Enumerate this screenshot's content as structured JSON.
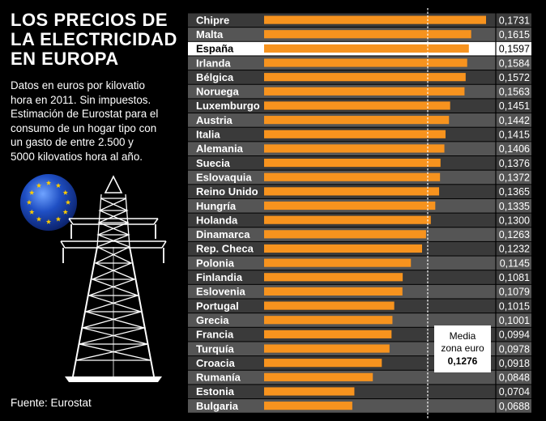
{
  "title": "LOS PRECIOS DE\nLA ELECTRICIDAD\nEN EUROPA",
  "description": "Datos en euros por  kilovatio\nhora en 2011. Sin impuestos.\nEstimación de Eurostat para el\nconsumo de un hogar tipo con\nun gasto de entre 2.500 y\n5000 kilovatios hora al año.",
  "source": "Fuente: Eurostat",
  "icons": {
    "flag": "eu-flag-icon",
    "tower": "power-pylon-icon"
  },
  "colors": {
    "background": "#000000",
    "bar": "#f7931e",
    "row_dark": "#3a3a3a",
    "row_light": "#555555",
    "highlight_row": "#ffffff",
    "eu_blue": "#003399",
    "eu_star": "#ffcc00"
  },
  "chart_data": {
    "type": "bar",
    "orientation": "horizontal",
    "categories": [
      "Chipre",
      "Malta",
      "España",
      "Irlanda",
      "Bélgica",
      "Noruega",
      "Luxemburgo",
      "Austria",
      "Italia",
      "Alemania",
      "Suecia",
      "Eslovaquia",
      "Reino Unido",
      "Hungría",
      "Holanda",
      "Dinamarca",
      "Rep. Checa",
      "Polonia",
      "Finlandia",
      "Eslovenia",
      "Portugal",
      "Grecia",
      "Francia",
      "Turquía",
      "Croacia",
      "Rumanía",
      "Estonia",
      "Bulgaria"
    ],
    "values": [
      0.1731,
      0.1615,
      0.1597,
      0.1584,
      0.1572,
      0.1563,
      0.1451,
      0.1442,
      0.1415,
      0.1406,
      0.1376,
      0.1372,
      0.1365,
      0.1335,
      0.13,
      0.1263,
      0.1232,
      0.1145,
      0.1081,
      0.1079,
      0.1015,
      0.1001,
      0.0994,
      0.0978,
      0.0918,
      0.0848,
      0.0704,
      0.0688
    ],
    "value_labels": [
      "0,1731",
      "0,1615",
      "0,1597",
      "0,1584",
      "0,1572",
      "0,1563",
      "0,1451",
      "0,1442",
      "0,1415",
      "0,1406",
      "0,1376",
      "0,1372",
      "0,1365",
      "0,1335",
      "0,1300",
      "0,1263",
      "0,1232",
      "0,1145",
      "0,1081",
      "0,1079",
      "0,1015",
      "0,1001",
      "0,0994",
      "0,0978",
      "0,0918",
      "0,0848",
      "0,0704",
      "0,0688"
    ],
    "highlight": "España",
    "xlim": [
      0,
      0.1731
    ],
    "reference_line": {
      "value": 0.1276,
      "label_line1": "Media",
      "label_line2": "zona euro",
      "label_value": "0,1276"
    },
    "grid": false,
    "legend": "none"
  }
}
